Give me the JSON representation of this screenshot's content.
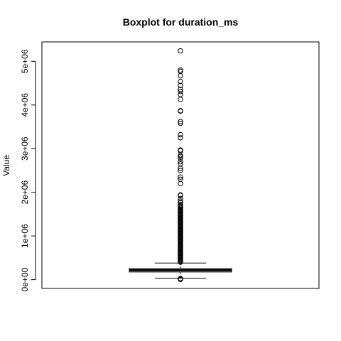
{
  "chart_data": {
    "type": "boxplot",
    "title": "Boxplot for duration_ms",
    "xlabel": "",
    "ylabel": "Value",
    "ylim": [
      0,
      5240000
    ],
    "yticks": [
      {
        "value": 0,
        "label": "0e+00"
      },
      {
        "value": 1000000,
        "label": "1e+06"
      },
      {
        "value": 2000000,
        "label": "2e+06"
      },
      {
        "value": 3000000,
        "label": "3e+06"
      },
      {
        "value": 4000000,
        "label": "4e+06"
      },
      {
        "value": 5000000,
        "label": "5e+06"
      }
    ],
    "grid": false,
    "box": {
      "lower_whisker": 30000,
      "q1": 175000,
      "median": 215000,
      "q3": 255000,
      "upper_whisker": 380000
    },
    "outliers": [
      5000,
      8000,
      12000,
      15000,
      20000,
      25000,
      400000,
      420000,
      440000,
      460000,
      480000,
      500000,
      520000,
      540000,
      560000,
      580000,
      600000,
      620000,
      640000,
      660000,
      680000,
      700000,
      720000,
      740000,
      760000,
      780000,
      800000,
      820000,
      840000,
      860000,
      880000,
      900000,
      920000,
      940000,
      960000,
      980000,
      1000000,
      1020000,
      1040000,
      1060000,
      1080000,
      1100000,
      1120000,
      1140000,
      1160000,
      1180000,
      1200000,
      1220000,
      1240000,
      1260000,
      1280000,
      1300000,
      1320000,
      1340000,
      1360000,
      1380000,
      1400000,
      1420000,
      1440000,
      1460000,
      1480000,
      1500000,
      1520000,
      1540000,
      1560000,
      1580000,
      1600000,
      1620000,
      1650000,
      1680000,
      1700000,
      1720000,
      1760000,
      1800000,
      1860000,
      1930000,
      1940000,
      2200000,
      2300000,
      2350000,
      2500000,
      2550000,
      2650000,
      2700000,
      2780000,
      2820000,
      2850000,
      2950000,
      2970000,
      3250000,
      3320000,
      3580000,
      3620000,
      3860000,
      3870000,
      4130000,
      4240000,
      4310000,
      4360000,
      4450000,
      4540000,
      4670000,
      4770000,
      4800000,
      5240000
    ]
  }
}
